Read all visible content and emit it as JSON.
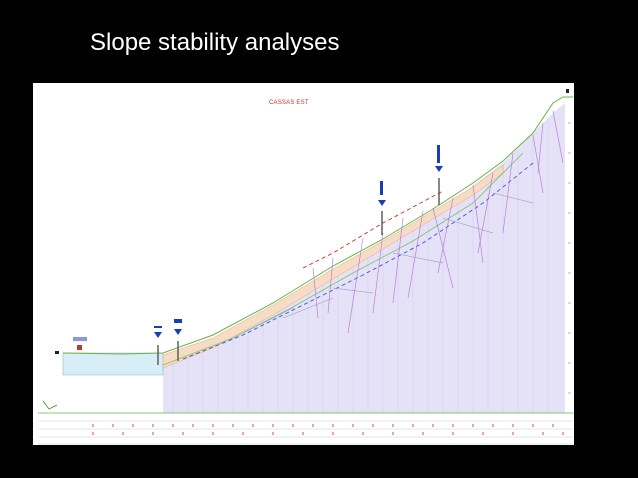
{
  "slide": {
    "title": "Slope stability analyses"
  },
  "figure": {
    "section_title": "CASSAS EST",
    "colors": {
      "title": "#d62b2b",
      "ground_line": "#6ab04c",
      "river": "#d8eef6",
      "slide_mass": "#f6dcc4",
      "failure_zone": "#d9d5f2",
      "boreholes": "#8e44ad",
      "borehole_markers": "#1a3fb0",
      "piezometric_line": "#3b55c9"
    }
  }
}
